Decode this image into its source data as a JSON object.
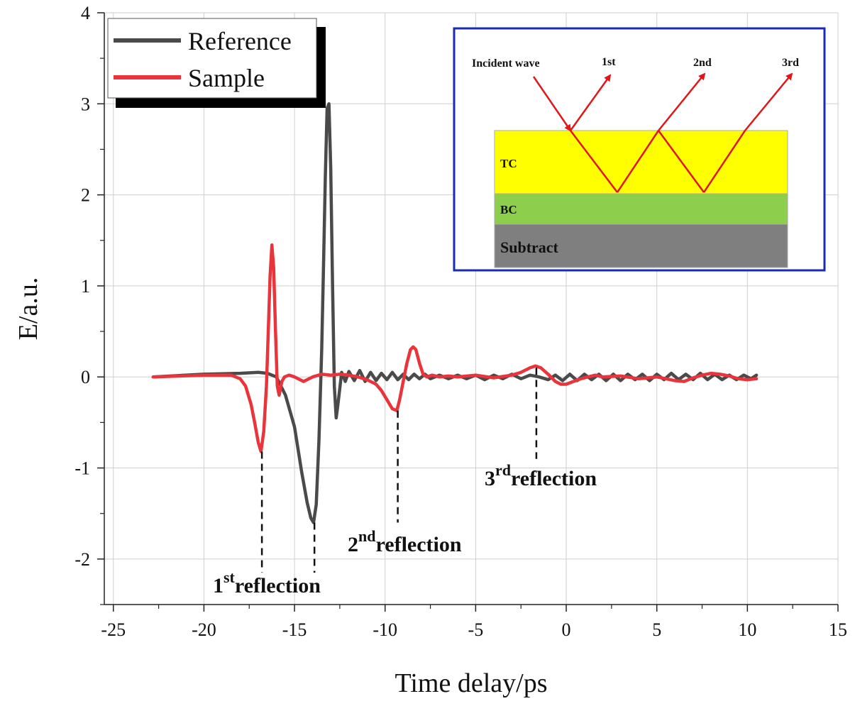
{
  "chart_data": {
    "type": "line",
    "title": "",
    "xlabel": "Time delay/ps",
    "ylabel": "E/a.u.",
    "xlim": [
      -25.5,
      15
    ],
    "ylim": [
      -2.5,
      4
    ],
    "xticks": [
      -25,
      -20,
      -15,
      -10,
      -5,
      0,
      5,
      10,
      15
    ],
    "xtick_labels": [
      "-25",
      "-20",
      "-15",
      "-10",
      "-5",
      "0",
      "5",
      "10",
      "15"
    ],
    "yticks": [
      -2,
      -1,
      0,
      1,
      2,
      3,
      4
    ],
    "ytick_labels": [
      "-2",
      "-1",
      "0",
      "1",
      "2",
      "3",
      "4"
    ],
    "grid": true,
    "legend": "top-left",
    "series": [
      {
        "name": "Reference",
        "color": "#4a4a4a",
        "x": [
          -22.8,
          -20,
          -18,
          -17,
          -16.5,
          -16,
          -15.5,
          -15,
          -14.6,
          -14.3,
          -14.1,
          -13.95,
          -13.8,
          -13.65,
          -13.5,
          -13.4,
          -13.3,
          -13.2,
          -13.1,
          -13.0,
          -12.9,
          -12.8,
          -12.7,
          -12.6,
          -12.4,
          -12.2,
          -12.0,
          -11.7,
          -11.4,
          -11.1,
          -10.8,
          -10.5,
          -10.2,
          -9.9,
          -9.6,
          -9.3,
          -9.0,
          -8.7,
          -8.4,
          -8.1,
          -7.8,
          -7.5,
          -7.0,
          -6.5,
          -6.0,
          -5.5,
          -5.0,
          -4.5,
          -4.0,
          -3.5,
          -3.0,
          -2.5,
          -2.0,
          -1.5,
          -1.0,
          -0.6,
          -0.2,
          0.2,
          0.6,
          1.0,
          1.4,
          1.8,
          2.2,
          2.6,
          3.0,
          3.4,
          3.8,
          4.2,
          4.6,
          5.0,
          5.4,
          5.8,
          6.2,
          6.6,
          7.0,
          7.4,
          7.8,
          8.2,
          8.6,
          9.0,
          9.4,
          9.8,
          10.2,
          10.5
        ],
        "y": [
          0.0,
          0.03,
          0.04,
          0.05,
          0.04,
          0.0,
          -0.2,
          -0.55,
          -1.05,
          -1.38,
          -1.55,
          -1.6,
          -1.4,
          -0.7,
          0.3,
          1.2,
          2.2,
          2.95,
          3.0,
          2.3,
          1.0,
          -0.1,
          -0.45,
          -0.3,
          0.05,
          -0.05,
          0.06,
          -0.04,
          0.07,
          -0.05,
          0.05,
          -0.04,
          0.04,
          -0.03,
          0.05,
          -0.03,
          0.03,
          -0.03,
          0.03,
          -0.02,
          0.03,
          -0.02,
          0.02,
          -0.02,
          0.02,
          -0.02,
          0.02,
          -0.03,
          0.02,
          -0.02,
          0.03,
          -0.02,
          0.02,
          0.0,
          -0.03,
          0.02,
          -0.04,
          0.03,
          -0.04,
          0.03,
          -0.03,
          0.03,
          -0.04,
          0.03,
          -0.04,
          0.03,
          -0.03,
          0.03,
          -0.04,
          0.03,
          -0.03,
          0.04,
          -0.03,
          0.03,
          -0.03,
          0.04,
          -0.03,
          0.03,
          -0.03,
          0.02,
          -0.03,
          0.02,
          -0.02,
          0.02
        ]
      },
      {
        "name": "Sample",
        "color": "#e8343a",
        "x": [
          -22.8,
          -20,
          -18.5,
          -18.0,
          -17.7,
          -17.4,
          -17.2,
          -17.0,
          -16.85,
          -16.7,
          -16.55,
          -16.45,
          -16.35,
          -16.25,
          -16.15,
          -16.05,
          -15.95,
          -15.85,
          -15.7,
          -15.55,
          -15.3,
          -15.0,
          -14.5,
          -14.0,
          -13.5,
          -13.0,
          -12.5,
          -12.0,
          -11.5,
          -11.0,
          -10.5,
          -10.2,
          -9.9,
          -9.6,
          -9.35,
          -9.2,
          -9.0,
          -8.8,
          -8.6,
          -8.45,
          -8.3,
          -8.1,
          -7.9,
          -7.7,
          -7.4,
          -7.0,
          -6.5,
          -6.0,
          -5.0,
          -4.0,
          -3.0,
          -2.5,
          -2.0,
          -1.7,
          -1.4,
          -1.0,
          -0.6,
          -0.3,
          0.0,
          0.4,
          0.8,
          1.2,
          1.6,
          2.0,
          3.0,
          4.0,
          5.0,
          6.0,
          6.5,
          7.0,
          7.5,
          8.0,
          8.5,
          9.0,
          9.5,
          10.0,
          10.5
        ],
        "y": [
          0.0,
          0.02,
          0.02,
          -0.02,
          -0.1,
          -0.3,
          -0.5,
          -0.72,
          -0.82,
          -0.6,
          -0.1,
          0.5,
          1.1,
          1.45,
          1.2,
          0.5,
          -0.1,
          -0.2,
          -0.05,
          0.0,
          0.02,
          0.0,
          -0.05,
          0.0,
          0.03,
          0.02,
          0.03,
          0.02,
          0.0,
          -0.03,
          -0.08,
          -0.15,
          -0.25,
          -0.35,
          -0.37,
          -0.25,
          -0.05,
          0.15,
          0.3,
          0.33,
          0.3,
          0.15,
          0.03,
          0.0,
          0.02,
          0.0,
          0.01,
          0.0,
          0.02,
          -0.01,
          0.02,
          0.05,
          0.1,
          0.12,
          0.1,
          0.03,
          -0.05,
          -0.08,
          -0.08,
          -0.05,
          -0.02,
          0.0,
          0.02,
          0.0,
          0.01,
          -0.02,
          0.0,
          -0.04,
          -0.05,
          -0.01,
          0.02,
          0.04,
          0.03,
          0.01,
          -0.02,
          -0.03,
          -0.02
        ]
      }
    ],
    "annotations": [
      {
        "name": "1st",
        "base": "1",
        "sup": "st",
        "rest": "reflection",
        "x": -16.8,
        "y_from": -0.82,
        "y_to": -2.15
      },
      {
        "name": "ref-min",
        "base": "",
        "sup": "",
        "rest": "",
        "x": -13.9,
        "y_from": -1.6,
        "y_to": -2.15
      },
      {
        "name": "2nd",
        "base": "2",
        "sup": "nd",
        "rest": "reflection",
        "x": -9.3,
        "y_from": -0.37,
        "y_to": -1.6
      },
      {
        "name": "3rd",
        "base": "3",
        "sup": "rd",
        "rest": "reflection",
        "x": -1.65,
        "y_from": 0.1,
        "y_to": -0.9
      }
    ]
  },
  "inset": {
    "incident_label": "Incident wave",
    "ray_labels": [
      "1st",
      "2nd",
      "3rd"
    ],
    "layers": [
      "TC",
      "BC",
      "Subtract"
    ],
    "border_color": "#1a2bb5",
    "ray_color": "#e0161b",
    "tc_color": "#ffff00",
    "bc_color": "#8dcf4c",
    "substrate_color": "#7f7f7f"
  }
}
